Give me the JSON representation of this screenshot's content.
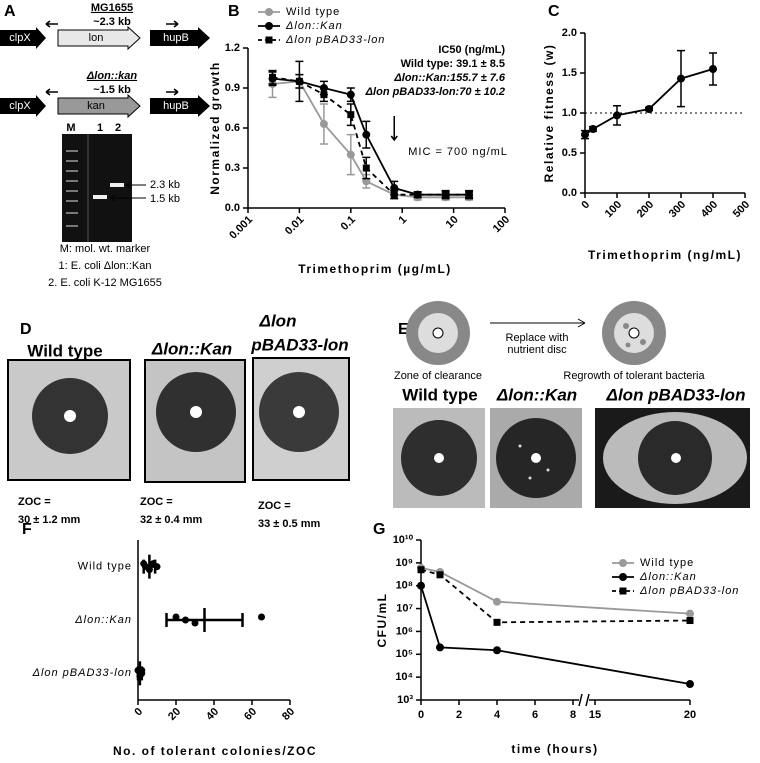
{
  "panel_a": {
    "label": "A",
    "wt_locus": {
      "strain": "MG1655",
      "size": "~2.3 kb",
      "genes": [
        "clpX",
        "lon",
        "hupB"
      ]
    },
    "mutant_locus": {
      "strain": "Δlon::kan",
      "size": "~1.5 kb",
      "genes": [
        "clpX",
        "kan",
        "hupB"
      ]
    },
    "gel": {
      "lanes": [
        "M",
        "1",
        "2"
      ],
      "bands": [
        "2.3 kb",
        "1.5 kb"
      ]
    },
    "legend": [
      "M: mol. wt. marker",
      "1: E. coli Δlon::Kan",
      "2. E. coli K-12 MG1655"
    ]
  },
  "panel_d": {
    "label": "D",
    "plates": [
      {
        "name": [
          "Wild type"
        ],
        "zoc_label": "ZOC =",
        "zoc": "30 ± 1.2 mm"
      },
      {
        "name": [
          "Δlon::Kan"
        ],
        "zoc_label": "ZOC =",
        "zoc": "32 ± 0.4 mm"
      },
      {
        "name": [
          "Δlon",
          "pBAD33-lon"
        ],
        "zoc_label": "ZOC =",
        "zoc": "33 ± 0.5 mm"
      }
    ]
  },
  "panel_e": {
    "label": "E",
    "before": "Zone of clearance",
    "step": [
      "Replace with",
      "nutrient disc"
    ],
    "after": "Regrowth of tolerant bacteria",
    "plates": [
      "Wild type",
      "Δlon::Kan",
      "Δlon pBAD33-lon"
    ]
  },
  "chart_data": [
    {
      "panel": "B",
      "type": "line",
      "x_label": "Trimethoprim (µg/mL)",
      "y_label": "Normalized growth",
      "xscale": "log",
      "xlim": [
        0.001,
        100
      ],
      "xticks": [
        0.001,
        0.01,
        0.1,
        1,
        10,
        100
      ],
      "ylim": [
        0,
        1.2
      ],
      "yticks": [
        {
          "value": 0,
          "label": "0.0"
        },
        0.3,
        0.6,
        0.9,
        1.2
      ],
      "x": [
        0.003,
        0.01,
        0.03,
        0.1,
        0.2,
        0.7,
        2,
        7,
        20
      ],
      "series": [
        {
          "name": "Wild type",
          "color": "#999999",
          "marker": "circle",
          "dash": false,
          "values": [
            0.93,
            0.95,
            0.63,
            0.4,
            0.2,
            0.1,
            0.08,
            0.08,
            0.08
          ],
          "errors": [
            0.1,
            0.05,
            0.15,
            0.15,
            0.05,
            0.03,
            0.02,
            0.02,
            0.02
          ]
        },
        {
          "name": "Δlon::Kan",
          "color": "#000000",
          "marker": "circle",
          "dash": false,
          "values": [
            0.97,
            0.95,
            0.9,
            0.85,
            0.55,
            0.15,
            0.1,
            0.1,
            0.1
          ],
          "errors": [
            0.05,
            0.15,
            0.05,
            0.05,
            0.1,
            0.05,
            0.02,
            0.03,
            0.03
          ]
        },
        {
          "name": "Δlon pBAD33-lon",
          "color": "#000000",
          "marker": "square",
          "dash": true,
          "values": [
            0.98,
            0.95,
            0.85,
            0.7,
            0.3,
            0.1,
            0.1,
            0.1,
            0.1
          ],
          "errors": [
            0.05,
            0.05,
            0.05,
            0.08,
            0.08,
            0.03,
            0.02,
            0.02,
            0.02
          ]
        }
      ],
      "annotations": [
        "IC50 (ng/mL)",
        "Wild type: 39.1 ± 8.5",
        "Δlon::Kan:155.7 ± 7.6",
        "Δlon pBAD33-lon:70 ± 10.2"
      ],
      "mic": 0.7,
      "mic_label": "MIC = 700 ng/mL"
    },
    {
      "panel": "C",
      "type": "line",
      "x_label": "Trimethoprim (ng/mL)",
      "y_label": "Relative fitness (w)",
      "xlim": [
        0,
        500
      ],
      "xticks": [
        0,
        100,
        200,
        300,
        400,
        500
      ],
      "ylim": [
        0,
        2
      ],
      "yticks": [
        {
          "value": 0,
          "label": "0.0"
        },
        0.5,
        {
          "value": 1,
          "label": "1.0"
        },
        1.5,
        {
          "value": 2,
          "label": "2.0"
        }
      ],
      "x": [
        0,
        25,
        100,
        200,
        300,
        400
      ],
      "color": "#000000",
      "marker": "circle",
      "values": [
        0.73,
        0.8,
        0.97,
        1.05,
        1.43,
        1.55
      ],
      "errors": [
        0.05,
        0.03,
        0.12,
        0.02,
        0.35,
        0.2
      ],
      "reference_line": 1
    },
    {
      "panel": "F",
      "type": "dot",
      "x_label": "No. of tolerant colonies/ZOC",
      "categories": [
        "Wild type",
        "Δlon::Kan",
        "Δlon pBAD33-lon"
      ],
      "xlim": [
        0,
        80
      ],
      "xticks": [
        0,
        20,
        40,
        60,
        80
      ],
      "values": [
        [
          3,
          4,
          6,
          8,
          10
        ],
        [
          20,
          25,
          30,
          65
        ],
        [
          0,
          1,
          1,
          2,
          2
        ]
      ],
      "means": [
        6,
        35,
        1
      ],
      "errors": [
        3,
        20,
        1
      ]
    },
    {
      "panel": "G",
      "type": "line",
      "x_label": "time (hours)",
      "y_label": "CFU/mL",
      "yscale": "log",
      "xlim": [
        0,
        20
      ],
      "xticks": [
        0,
        2,
        4,
        6,
        8,
        15,
        20
      ],
      "xbreak": [
        8,
        15
      ],
      "ylim": [
        1000,
        10000000000
      ],
      "yticks": [
        {
          "value": 1000,
          "label": "10³"
        },
        {
          "value": 10000,
          "label": "10⁴"
        },
        {
          "value": 100000,
          "label": "10⁵"
        },
        {
          "value": 1000000,
          "label": "10⁶"
        },
        {
          "value": 10000000,
          "label": "10⁷"
        },
        {
          "value": 100000000,
          "label": "10⁸"
        },
        {
          "value": 1000000000,
          "label": "10⁹"
        },
        {
          "value": 10000000000,
          "label": "10¹⁰"
        }
      ],
      "x": [
        0,
        1,
        4,
        20
      ],
      "series": [
        {
          "name": "Wild type",
          "color": "#999999",
          "marker": "circle",
          "dash": false,
          "values": [
            600000000,
            400000000,
            20000000,
            6000000
          ]
        },
        {
          "name": "Δlon::Kan",
          "color": "#000000",
          "marker": "circle",
          "dash": false,
          "values": [
            100000000,
            200000,
            150000,
            5000
          ]
        },
        {
          "name": "Δlon pBAD33-lon",
          "color": "#000000",
          "marker": "square",
          "dash": true,
          "values": [
            500000000,
            300000000,
            2500000,
            3000000
          ]
        }
      ]
    }
  ]
}
